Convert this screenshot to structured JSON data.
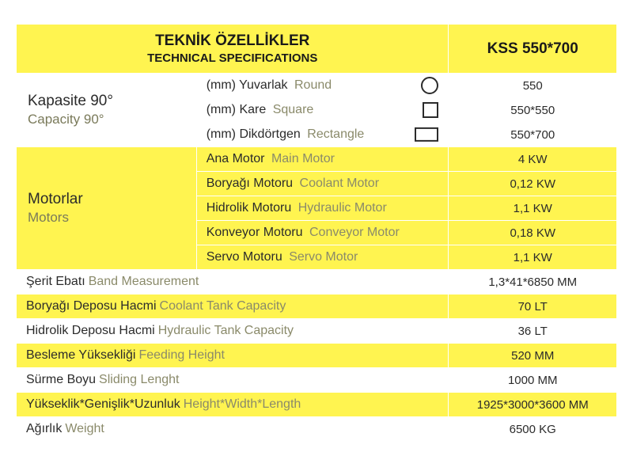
{
  "header": {
    "title_tr": "TEKNİK ÖZELLİKLER",
    "title_en": "TECHNICAL SPECIFICATIONS",
    "model": "KSS 550*700"
  },
  "capacity": {
    "label_tr": "Kapasite 90°",
    "label_en": "Capacity 90°",
    "rows": [
      {
        "tr": "(mm) Yuvarlak",
        "en": "Round",
        "shape": "circle",
        "val": "550"
      },
      {
        "tr": "(mm) Kare",
        "en": "Square",
        "shape": "square",
        "val": "550*550"
      },
      {
        "tr": "(mm) Dikdörtgen",
        "en": "Rectangle",
        "shape": "rect",
        "val": "550*700"
      }
    ]
  },
  "motors": {
    "label_tr": "Motorlar",
    "label_en": "Motors",
    "rows": [
      {
        "tr": "Ana Motor",
        "en": "Main Motor",
        "val": "4 KW"
      },
      {
        "tr": "Boryağı Motoru",
        "en": "Coolant Motor",
        "val": "0,12 KW"
      },
      {
        "tr": "Hidrolik Motoru",
        "en": "Hydraulic Motor",
        "val": "1,1 KW"
      },
      {
        "tr": "Konveyor Motoru",
        "en": "Conveyor Motor",
        "val": "0,18 KW"
      },
      {
        "tr": "Servo Motoru",
        "en": "Servo Motor",
        "val": "1,1 KW"
      }
    ]
  },
  "simple_rows": [
    {
      "tr": "Şerit Ebatı",
      "en": "Band Measurement",
      "val": "1,3*41*6850 MM",
      "bg": "white"
    },
    {
      "tr": "Boryağı Deposu Hacmi",
      "en": "Coolant Tank Capacity",
      "val": "70 LT",
      "bg": "yellow"
    },
    {
      "tr": "Hidrolik Deposu Hacmi",
      "en": "Hydraulic Tank Capacity",
      "val": "36 LT",
      "bg": "white"
    },
    {
      "tr": "Besleme Yüksekliği",
      "en": "Feeding Height",
      "val": "520 MM",
      "bg": "yellow"
    },
    {
      "tr": "Sürme Boyu",
      "en": "Sliding Lenght",
      "val": "1000 MM",
      "bg": "white"
    },
    {
      "tr": "Yükseklik*Genişlik*Uzunluk",
      "en": "Height*Width*Length",
      "val": "1925*3000*3600 MM",
      "bg": "yellow"
    },
    {
      "tr": "Ağırlık",
      "en": "Weight",
      "val": "6500 KG",
      "bg": "white"
    }
  ],
  "colors": {
    "yellow": "#fff450",
    "white": "#ffffff",
    "text_primary": "#2b2b2b",
    "text_secondary": "#8a8a6a"
  }
}
